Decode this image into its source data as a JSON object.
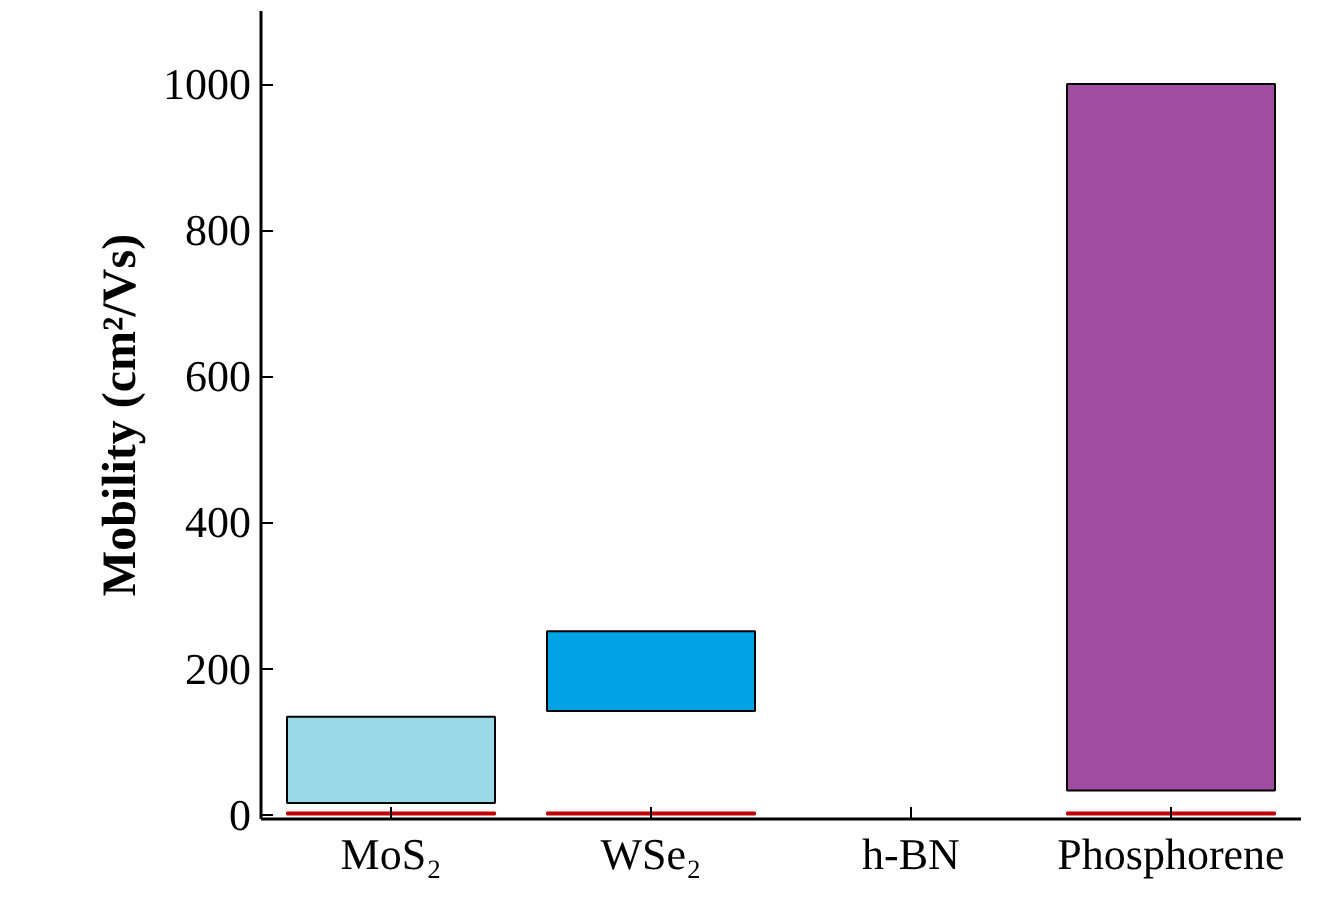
{
  "chart_data": {
    "type": "bar",
    "ylabel": "Mobility (cm²/Vs)",
    "categories": [
      "MoS₂",
      "WSe₂",
      "h-BN",
      "Phosphorene"
    ],
    "series": [
      {
        "values": [
          118,
          109,
          null,
          967
        ],
        "base": [
          16,
          142,
          null,
          33
        ],
        "colors": [
          "#9ad9e8",
          "#00a2e6",
          "#ffffff",
          "#a04ca0"
        ]
      },
      {
        "values": [
          3,
          3,
          null,
          3
        ],
        "color": "#c00000"
      }
    ],
    "ylim": [
      -6,
      1100
    ],
    "yticks": [
      0,
      200,
      400,
      600,
      800,
      1000
    ],
    "grid": false
  }
}
